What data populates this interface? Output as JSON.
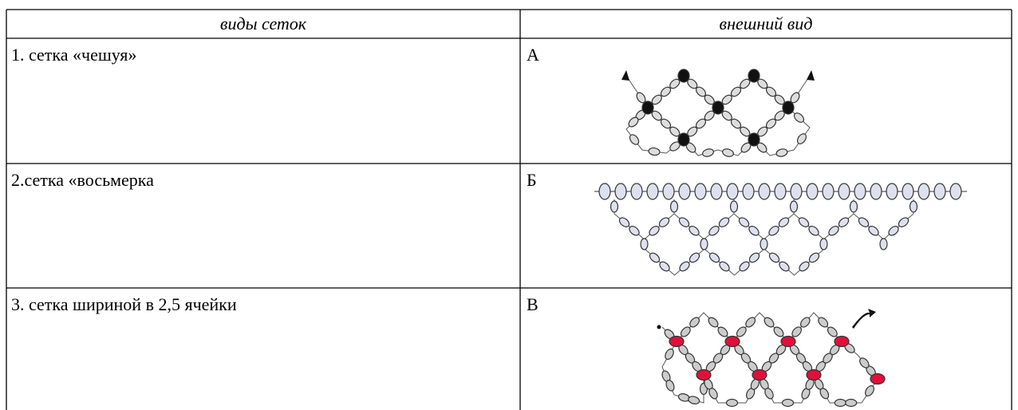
{
  "table": {
    "header": [
      "виды сеток",
      "внешний вид"
    ],
    "rows": [
      [
        "1. сетка «чешуя»",
        "А"
      ],
      [
        "2.сетка «восьмерка",
        "Б"
      ],
      [
        "3. сетка шириной в 2,5 ячейки",
        "В"
      ]
    ]
  }
}
